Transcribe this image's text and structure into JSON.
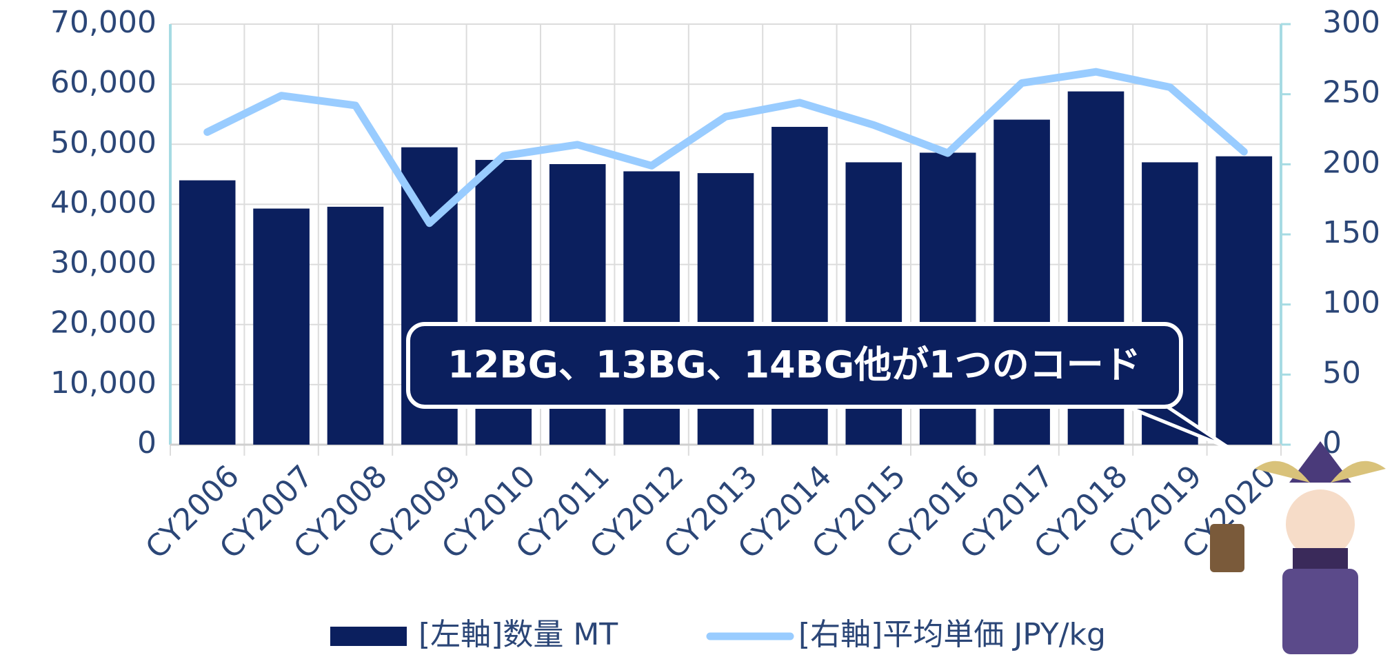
{
  "chart_data": {
    "type": "combo",
    "categories": [
      "CY2006",
      "CY2007",
      "CY2008",
      "CY2009",
      "CY2010",
      "CY2011",
      "CY2012",
      "CY2013",
      "CY2014",
      "CY2015",
      "CY2016",
      "CY2017",
      "CY2018",
      "CY2019",
      "CY2020"
    ],
    "series": [
      {
        "name": "[左軸]数量 MT",
        "type": "bar",
        "color": "#0b1f5e",
        "axis": "y",
        "values": [
          44000,
          39300,
          39600,
          49500,
          47400,
          46700,
          45500,
          45200,
          52900,
          47000,
          48600,
          54100,
          58800,
          47000,
          48000
        ]
      },
      {
        "name": "[右軸]平均単価 JPY/kg",
        "type": "line",
        "color": "#99ccff",
        "axis": "y2",
        "values": [
          223,
          249,
          242,
          158,
          206,
          214,
          199,
          234,
          244,
          228,
          208,
          258,
          266,
          255,
          209
        ]
      }
    ],
    "ylim": [
      0,
      70000
    ],
    "yticks": [
      {
        "value": 0,
        "label": "0"
      },
      {
        "value": 10000,
        "label": "10,000"
      },
      {
        "value": 20000,
        "label": "20,000"
      },
      {
        "value": 30000,
        "label": "30,000"
      },
      {
        "value": 40000,
        "label": "40,000"
      },
      {
        "value": 50000,
        "label": "50,000"
      },
      {
        "value": 60000,
        "label": "60,000"
      },
      {
        "value": 70000,
        "label": "70,000"
      }
    ],
    "y2lim": [
      0,
      300
    ],
    "y2ticks": [
      0,
      50,
      100,
      150,
      200,
      250,
      300
    ],
    "grid": true,
    "legend": "bottom",
    "annotation": "12BG、13BG、14BG他が1つのコード"
  }
}
